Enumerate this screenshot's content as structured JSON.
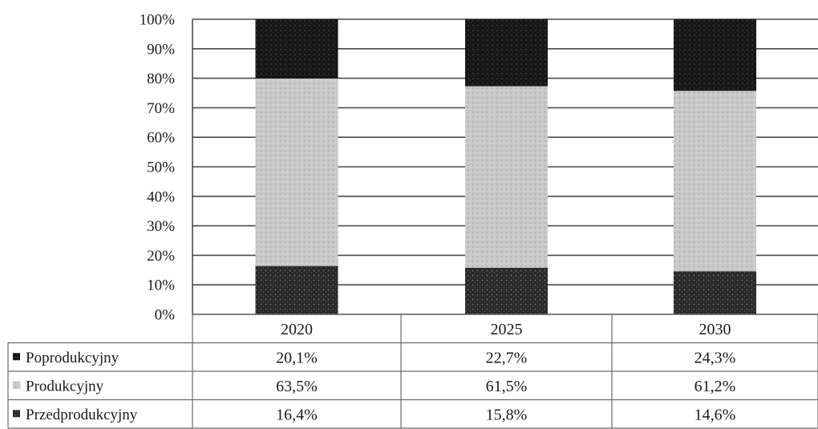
{
  "chart_data": {
    "type": "bar",
    "stacked": true,
    "normalized": true,
    "categories": [
      "2020",
      "2025",
      "2030"
    ],
    "series": [
      {
        "name": "Przedprodukcyjny",
        "values": [
          16.4,
          15.8,
          14.6
        ],
        "labels": [
          "16,4%",
          "15,8%",
          "14,6%"
        ],
        "color": "#3a3a3a"
      },
      {
        "name": "Produkcyjny",
        "values": [
          63.5,
          61.5,
          61.2
        ],
        "labels": [
          "63,5%",
          "61,5%",
          "61,2%"
        ],
        "color": "#c8c8c8"
      },
      {
        "name": "Poprodukcyjny",
        "values": [
          20.1,
          22.7,
          24.3
        ],
        "labels": [
          "20,1%",
          "22,7%",
          "24,3%"
        ],
        "color": "#1e1e1e"
      }
    ],
    "table_order": [
      "Poprodukcyjny",
      "Produkcyjny",
      "Przedprodukcyjny"
    ],
    "yticks": [
      "0%",
      "10%",
      "20%",
      "30%",
      "40%",
      "50%",
      "60%",
      "70%",
      "80%",
      "90%",
      "100%"
    ],
    "ylim": [
      0,
      100
    ],
    "grid": true,
    "legend": "data-table-below"
  }
}
